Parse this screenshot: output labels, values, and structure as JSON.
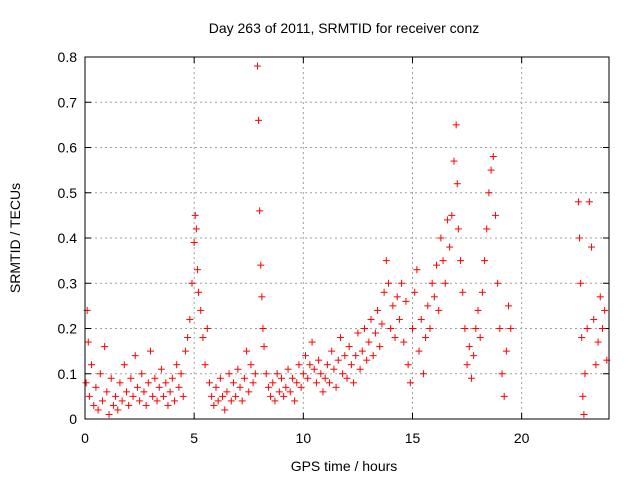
{
  "chart_data": {
    "type": "scatter",
    "title": "Day 263 of 2011, SRMTID for receiver conz",
    "xlabel": "GPS time / hours",
    "ylabel": "SRMTID / TECUs",
    "xlim": [
      0,
      24
    ],
    "ylim": [
      0,
      0.8
    ],
    "xticks": [
      0,
      5,
      10,
      15,
      20
    ],
    "yticks": [
      0,
      0.1,
      0.2,
      0.3,
      0.4,
      0.5,
      0.6,
      0.7,
      0.8
    ],
    "xtick_labels": [
      "0",
      "5",
      "10",
      "15",
      "20"
    ],
    "ytick_labels": [
      "0",
      "0.1",
      "0.2",
      "0.3",
      "0.4",
      "0.5",
      "0.6",
      "0.7",
      "0.8"
    ],
    "grid": true,
    "marker": "+",
    "color": "#ff0000",
    "series": [
      {
        "name": "SRMTID",
        "points": [
          [
            0.05,
            0.08
          ],
          [
            0.1,
            0.24
          ],
          [
            0.15,
            0.17
          ],
          [
            0.2,
            0.05
          ],
          [
            0.3,
            0.12
          ],
          [
            0.4,
            0.03
          ],
          [
            0.5,
            0.07
          ],
          [
            0.6,
            0.02
          ],
          [
            0.7,
            0.1
          ],
          [
            0.8,
            0.04
          ],
          [
            0.9,
            0.16
          ],
          [
            1.0,
            0.06
          ],
          [
            1.1,
            0.01
          ],
          [
            1.2,
            0.09
          ],
          [
            1.3,
            0.03
          ],
          [
            1.4,
            0.05
          ],
          [
            1.5,
            0.02
          ],
          [
            1.6,
            0.08
          ],
          [
            1.7,
            0.04
          ],
          [
            1.8,
            0.12
          ],
          [
            1.9,
            0.06
          ],
          [
            2.0,
            0.03
          ],
          [
            2.1,
            0.09
          ],
          [
            2.2,
            0.05
          ],
          [
            2.3,
            0.14
          ],
          [
            2.4,
            0.07
          ],
          [
            2.5,
            0.04
          ],
          [
            2.6,
            0.1
          ],
          [
            2.7,
            0.06
          ],
          [
            2.8,
            0.03
          ],
          [
            2.9,
            0.08
          ],
          [
            3.0,
            0.15
          ],
          [
            3.1,
            0.05
          ],
          [
            3.2,
            0.09
          ],
          [
            3.3,
            0.04
          ],
          [
            3.4,
            0.07
          ],
          [
            3.5,
            0.11
          ],
          [
            3.6,
            0.05
          ],
          [
            3.7,
            0.08
          ],
          [
            3.8,
            0.03
          ],
          [
            3.9,
            0.06
          ],
          [
            4.0,
            0.09
          ],
          [
            4.1,
            0.04
          ],
          [
            4.2,
            0.12
          ],
          [
            4.3,
            0.07
          ],
          [
            4.4,
            0.1
          ],
          [
            4.5,
            0.05
          ],
          [
            4.6,
            0.15
          ],
          [
            4.7,
            0.18
          ],
          [
            4.8,
            0.22
          ],
          [
            4.9,
            0.3
          ],
          [
            5.0,
            0.39
          ],
          [
            5.05,
            0.45
          ],
          [
            5.1,
            0.42
          ],
          [
            5.15,
            0.33
          ],
          [
            5.2,
            0.28
          ],
          [
            5.3,
            0.24
          ],
          [
            5.4,
            0.18
          ],
          [
            5.5,
            0.12
          ],
          [
            5.6,
            0.2
          ],
          [
            5.7,
            0.08
          ],
          [
            5.8,
            0.05
          ],
          [
            5.9,
            0.03
          ],
          [
            6.0,
            0.07
          ],
          [
            6.1,
            0.04
          ],
          [
            6.2,
            0.09
          ],
          [
            6.3,
            0.05
          ],
          [
            6.4,
            0.02
          ],
          [
            6.5,
            0.06
          ],
          [
            6.6,
            0.1
          ],
          [
            6.7,
            0.04
          ],
          [
            6.8,
            0.08
          ],
          [
            6.9,
            0.05
          ],
          [
            7.0,
            0.11
          ],
          [
            7.1,
            0.07
          ],
          [
            7.2,
            0.04
          ],
          [
            7.3,
            0.09
          ],
          [
            7.4,
            0.15
          ],
          [
            7.5,
            0.06
          ],
          [
            7.6,
            0.12
          ],
          [
            7.7,
            0.08
          ],
          [
            7.8,
            0.1
          ],
          [
            7.9,
            0.78
          ],
          [
            7.95,
            0.66
          ],
          [
            8.0,
            0.46
          ],
          [
            8.05,
            0.34
          ],
          [
            8.1,
            0.27
          ],
          [
            8.15,
            0.2
          ],
          [
            8.2,
            0.16
          ],
          [
            8.3,
            0.1
          ],
          [
            8.4,
            0.07
          ],
          [
            8.5,
            0.05
          ],
          [
            8.6,
            0.08
          ],
          [
            8.7,
            0.04
          ],
          [
            8.8,
            0.1
          ],
          [
            8.9,
            0.06
          ],
          [
            9.0,
            0.09
          ],
          [
            9.1,
            0.05
          ],
          [
            9.2,
            0.07
          ],
          [
            9.3,
            0.11
          ],
          [
            9.4,
            0.06
          ],
          [
            9.5,
            0.09
          ],
          [
            9.6,
            0.04
          ],
          [
            9.7,
            0.08
          ],
          [
            9.8,
            0.12
          ],
          [
            9.9,
            0.07
          ],
          [
            10.0,
            0.1
          ],
          [
            10.1,
            0.14
          ],
          [
            10.2,
            0.09
          ],
          [
            10.3,
            0.12
          ],
          [
            10.4,
            0.17
          ],
          [
            10.5,
            0.11
          ],
          [
            10.6,
            0.08
          ],
          [
            10.7,
            0.13
          ],
          [
            10.8,
            0.1
          ],
          [
            10.9,
            0.06
          ],
          [
            11.0,
            0.09
          ],
          [
            11.1,
            0.12
          ],
          [
            11.2,
            0.08
          ],
          [
            11.3,
            0.15
          ],
          [
            11.4,
            0.11
          ],
          [
            11.5,
            0.07
          ],
          [
            11.6,
            0.13
          ],
          [
            11.7,
            0.18
          ],
          [
            11.8,
            0.1
          ],
          [
            11.9,
            0.14
          ],
          [
            12.0,
            0.09
          ],
          [
            12.1,
            0.16
          ],
          [
            12.2,
            0.12
          ],
          [
            12.3,
            0.08
          ],
          [
            12.4,
            0.14
          ],
          [
            12.5,
            0.19
          ],
          [
            12.6,
            0.11
          ],
          [
            12.7,
            0.15
          ],
          [
            12.8,
            0.2
          ],
          [
            12.9,
            0.13
          ],
          [
            13.0,
            0.17
          ],
          [
            13.1,
            0.22
          ],
          [
            13.2,
            0.14
          ],
          [
            13.3,
            0.19
          ],
          [
            13.4,
            0.24
          ],
          [
            13.5,
            0.16
          ],
          [
            13.6,
            0.21
          ],
          [
            13.7,
            0.28
          ],
          [
            13.8,
            0.35
          ],
          [
            13.9,
            0.3
          ],
          [
            14.0,
            0.2
          ],
          [
            14.1,
            0.25
          ],
          [
            14.2,
            0.18
          ],
          [
            14.3,
            0.27
          ],
          [
            14.4,
            0.22
          ],
          [
            14.5,
            0.3
          ],
          [
            14.6,
            0.17
          ],
          [
            14.7,
            0.26
          ],
          [
            14.8,
            0.12
          ],
          [
            14.9,
            0.08
          ],
          [
            15.0,
            0.2
          ],
          [
            15.1,
            0.28
          ],
          [
            15.2,
            0.33
          ],
          [
            15.3,
            0.15
          ],
          [
            15.4,
            0.22
          ],
          [
            15.5,
            0.1
          ],
          [
            15.6,
            0.18
          ],
          [
            15.7,
            0.25
          ],
          [
            15.8,
            0.2
          ],
          [
            15.9,
            0.3
          ],
          [
            16.0,
            0.27
          ],
          [
            16.1,
            0.34
          ],
          [
            16.2,
            0.24
          ],
          [
            16.3,
            0.4
          ],
          [
            16.4,
            0.35
          ],
          [
            16.5,
            0.3
          ],
          [
            16.6,
            0.44
          ],
          [
            16.7,
            0.38
          ],
          [
            16.8,
            0.45
          ],
          [
            16.9,
            0.57
          ],
          [
            17.0,
            0.65
          ],
          [
            17.05,
            0.52
          ],
          [
            17.1,
            0.42
          ],
          [
            17.2,
            0.35
          ],
          [
            17.3,
            0.28
          ],
          [
            17.4,
            0.2
          ],
          [
            17.5,
            0.12
          ],
          [
            17.6,
            0.16
          ],
          [
            17.7,
            0.09
          ],
          [
            17.8,
            0.14
          ],
          [
            17.9,
            0.2
          ],
          [
            18.0,
            0.24
          ],
          [
            18.1,
            0.18
          ],
          [
            18.2,
            0.28
          ],
          [
            18.3,
            0.35
          ],
          [
            18.4,
            0.42
          ],
          [
            18.5,
            0.5
          ],
          [
            18.6,
            0.55
          ],
          [
            18.7,
            0.58
          ],
          [
            18.8,
            0.45
          ],
          [
            18.9,
            0.3
          ],
          [
            19.0,
            0.2
          ],
          [
            19.1,
            0.1
          ],
          [
            19.2,
            0.05
          ],
          [
            19.3,
            0.15
          ],
          [
            19.4,
            0.25
          ],
          [
            19.5,
            0.2
          ],
          [
            22.6,
            0.48
          ],
          [
            22.65,
            0.4
          ],
          [
            22.7,
            0.3
          ],
          [
            22.75,
            0.18
          ],
          [
            22.8,
            0.05
          ],
          [
            22.85,
            0.01
          ],
          [
            22.9,
            0.1
          ],
          [
            23.0,
            0.2
          ],
          [
            23.1,
            0.48
          ],
          [
            23.2,
            0.38
          ],
          [
            23.3,
            0.22
          ],
          [
            23.4,
            0.12
          ],
          [
            23.5,
            0.17
          ],
          [
            23.6,
            0.27
          ],
          [
            23.7,
            0.2
          ],
          [
            23.8,
            0.24
          ],
          [
            23.9,
            0.13
          ]
        ]
      }
    ]
  }
}
